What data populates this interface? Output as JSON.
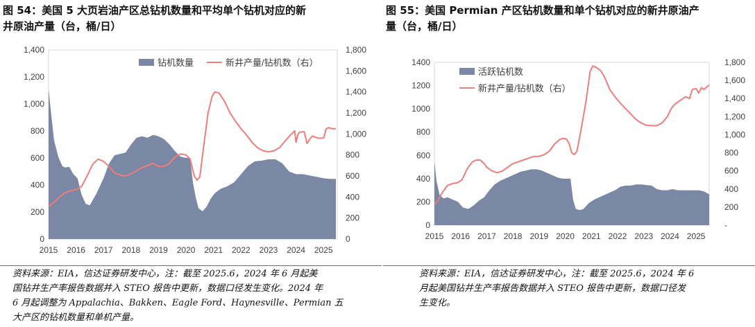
{
  "left": {
    "title_line1": "图 54：美国 5 大页岩油产区总钻机数量和平均单个钻机对应的新",
    "title_line2": "井原油产量（台，桶/日）",
    "source_line1": "资料来源：EIA，信达证券研发中心，注：截至 2025.6，2024 年 6 月起美",
    "source_line2": "国钻井生产率报告数据并入 STEO 报告中更新，数据口径发生变化。2024 年",
    "source_line3": "6 月起调整为 Appalachia、Bakken、Eagle Ford、Haynesville、Permian 五",
    "source_line4": "大产区的钻机数量和单机产量。"
  },
  "right": {
    "title_line1": "图 55：美国 Permian 产区钻机数量和单个钻机对应的新井原油产",
    "title_line2": "量（台，桶/日）",
    "source_line1": "资料来源：EIA，信达证券研发中心，注：截至 2025.6，2024 年 6",
    "source_line2": "月起美国钻井生产率报告数据并入 STEO 报告中更新，数据口径发",
    "source_line3": "生变化。"
  },
  "colors": {
    "area": "#7A88A6",
    "line": "#F07C7C",
    "axis": "#bfbfbf",
    "text": "#404040"
  },
  "chart_data": [
    {
      "type": "area",
      "title": "",
      "x_ticks": [
        "2015",
        "2016",
        "2017",
        "2018",
        "2019",
        "2020",
        "2021",
        "2022",
        "2023",
        "2024",
        "2025"
      ],
      "xlim": [
        2015.0,
        2025.5
      ],
      "y_left": {
        "ticks": [
          "0",
          "200",
          "400",
          "600",
          "800",
          "1,000",
          "1,200",
          "1,400"
        ],
        "lim": [
          0,
          1400
        ]
      },
      "y_right": {
        "ticks": [
          "0",
          "200",
          "400",
          "600",
          "800",
          "1,000",
          "1,200",
          "1,400",
          "1,600",
          "1,800"
        ],
        "lim": [
          0,
          1800
        ]
      },
      "legend_position": "top-right",
      "series": [
        {
          "name": "钻机数量",
          "kind": "area",
          "axis": "left",
          "x": [
            2015.0,
            2015.08,
            2015.2,
            2015.35,
            2015.5,
            2015.6,
            2015.75,
            2015.9,
            2016.05,
            2016.2,
            2016.35,
            2016.5,
            2016.75,
            2017.0,
            2017.2,
            2017.4,
            2017.6,
            2017.8,
            2018.0,
            2018.2,
            2018.4,
            2018.6,
            2018.8,
            2019.0,
            2019.2,
            2019.4,
            2019.6,
            2019.8,
            2020.0,
            2020.15,
            2020.25,
            2020.35,
            2020.45,
            2020.6,
            2020.75,
            2020.9,
            2021.05,
            2021.25,
            2021.5,
            2021.75,
            2022.0,
            2022.25,
            2022.5,
            2022.75,
            2023.0,
            2023.25,
            2023.5,
            2023.75,
            2024.0,
            2024.25,
            2024.5,
            2024.75,
            2025.0,
            2025.25,
            2025.45
          ],
          "values": [
            1110,
            950,
            730,
            610,
            540,
            530,
            535,
            480,
            450,
            330,
            260,
            250,
            340,
            450,
            560,
            620,
            630,
            640,
            700,
            750,
            760,
            750,
            770,
            760,
            740,
            700,
            650,
            610,
            600,
            600,
            420,
            310,
            230,
            205,
            240,
            300,
            340,
            370,
            390,
            420,
            480,
            540,
            575,
            580,
            590,
            590,
            560,
            500,
            480,
            480,
            470,
            460,
            450,
            445,
            445
          ]
        },
        {
          "name": "新井产量/钻机数（右）",
          "kind": "line",
          "axis": "right",
          "x": [
            2015.0,
            2015.2,
            2015.4,
            2015.6,
            2015.8,
            2016.0,
            2016.2,
            2016.4,
            2016.6,
            2016.8,
            2017.0,
            2017.2,
            2017.4,
            2017.6,
            2017.8,
            2018.0,
            2018.2,
            2018.4,
            2018.6,
            2018.8,
            2019.0,
            2019.2,
            2019.4,
            2019.6,
            2019.8,
            2020.0,
            2020.15,
            2020.3,
            2020.4,
            2020.5,
            2020.6,
            2020.8,
            2020.95,
            2021.05,
            2021.2,
            2021.4,
            2021.6,
            2021.8,
            2022.0,
            2022.2,
            2022.4,
            2022.6,
            2022.8,
            2023.0,
            2023.2,
            2023.4,
            2023.6,
            2023.8,
            2023.95,
            2024.0,
            2024.05,
            2024.1,
            2024.2,
            2024.3,
            2024.4,
            2024.45,
            2024.5,
            2024.6,
            2024.8,
            2025.0,
            2025.1,
            2025.2,
            2025.3,
            2025.45
          ],
          "values": [
            310,
            350,
            400,
            440,
            460,
            470,
            500,
            600,
            710,
            760,
            740,
            690,
            630,
            610,
            600,
            620,
            650,
            680,
            700,
            720,
            690,
            690,
            720,
            780,
            810,
            800,
            760,
            600,
            560,
            590,
            800,
            1200,
            1360,
            1400,
            1390,
            1310,
            1200,
            1120,
            1050,
            990,
            920,
            870,
            840,
            830,
            840,
            870,
            930,
            990,
            1030,
            920,
            980,
            1010,
            1020,
            1020,
            910,
            930,
            950,
            980,
            960,
            960,
            1050,
            1060,
            1050,
            1050
          ]
        }
      ]
    },
    {
      "type": "area",
      "title": "",
      "x_ticks": [
        "2015",
        "2016",
        "2017",
        "2018",
        "2019",
        "2020",
        "2021",
        "2022",
        "2023",
        "2024",
        "2025"
      ],
      "xlim": [
        2015.0,
        2025.5
      ],
      "y_left": {
        "ticks": [
          "0",
          "200",
          "400",
          "600",
          "800",
          "1000",
          "1200",
          "1400"
        ],
        "lim": [
          0,
          1400
        ]
      },
      "y_right": {
        "ticks": [
          "-",
          "200",
          "400",
          "600",
          "800",
          "1,000",
          "1,200",
          "1,400",
          "1,600",
          "1,800"
        ],
        "lim": [
          0,
          1800
        ]
      },
      "legend_position": "top-left",
      "series": [
        {
          "name": "活跃钻机数",
          "kind": "area",
          "axis": "left",
          "x": [
            2015.0,
            2015.08,
            2015.2,
            2015.35,
            2015.5,
            2015.7,
            2015.9,
            2016.1,
            2016.3,
            2016.5,
            2016.7,
            2016.9,
            2017.1,
            2017.3,
            2017.5,
            2017.7,
            2017.9,
            2018.1,
            2018.3,
            2018.5,
            2018.7,
            2018.9,
            2019.1,
            2019.3,
            2019.5,
            2019.7,
            2019.9,
            2020.1,
            2020.2,
            2020.3,
            2020.4,
            2020.55,
            2020.7,
            2020.9,
            2021.1,
            2021.3,
            2021.5,
            2021.7,
            2021.9,
            2022.1,
            2022.3,
            2022.5,
            2022.7,
            2022.9,
            2023.1,
            2023.3,
            2023.5,
            2023.7,
            2023.9,
            2024.1,
            2024.3,
            2024.5,
            2024.7,
            2024.9,
            2025.1,
            2025.3,
            2025.5
          ],
          "values": [
            550,
            380,
            260,
            230,
            240,
            220,
            200,
            150,
            140,
            170,
            210,
            240,
            300,
            350,
            380,
            400,
            420,
            440,
            460,
            470,
            480,
            480,
            470,
            450,
            430,
            410,
            400,
            400,
            400,
            220,
            140,
            130,
            140,
            190,
            220,
            240,
            260,
            280,
            300,
            330,
            340,
            340,
            350,
            350,
            345,
            340,
            310,
            300,
            300,
            310,
            300,
            300,
            300,
            300,
            300,
            290,
            265
          ]
        },
        {
          "name": "新井产量/钻机数（右）",
          "kind": "line",
          "axis": "right",
          "x": [
            2015.0,
            2015.15,
            2015.3,
            2015.5,
            2015.7,
            2015.9,
            2016.05,
            2016.25,
            2016.45,
            2016.6,
            2016.75,
            2016.9,
            2017.0,
            2017.2,
            2017.4,
            2017.6,
            2017.8,
            2018.0,
            2018.2,
            2018.4,
            2018.6,
            2018.8,
            2019.0,
            2019.2,
            2019.4,
            2019.6,
            2019.8,
            2019.95,
            2020.05,
            2020.15,
            2020.25,
            2020.35,
            2020.45,
            2020.6,
            2020.8,
            2020.95,
            2021.05,
            2021.2,
            2021.35,
            2021.5,
            2021.7,
            2021.9,
            2022.1,
            2022.3,
            2022.5,
            2022.7,
            2022.9,
            2023.1,
            2023.3,
            2023.5,
            2023.7,
            2023.9,
            2024.0,
            2024.1,
            2024.2,
            2024.3,
            2024.4,
            2024.5,
            2024.6,
            2024.75,
            2024.85,
            2025.0,
            2025.1,
            2025.2,
            2025.3,
            2025.5
          ],
          "values": [
            230,
            280,
            360,
            440,
            460,
            470,
            500,
            620,
            700,
            720,
            720,
            680,
            640,
            600,
            580,
            600,
            640,
            680,
            700,
            720,
            740,
            760,
            760,
            780,
            820,
            900,
            950,
            960,
            950,
            900,
            800,
            780,
            820,
            1050,
            1380,
            1700,
            1760,
            1740,
            1710,
            1640,
            1500,
            1420,
            1350,
            1290,
            1230,
            1170,
            1130,
            1105,
            1100,
            1100,
            1130,
            1200,
            1260,
            1310,
            1340,
            1360,
            1380,
            1400,
            1420,
            1400,
            1500,
            1510,
            1460,
            1520,
            1500,
            1550
          ]
        }
      ]
    }
  ]
}
